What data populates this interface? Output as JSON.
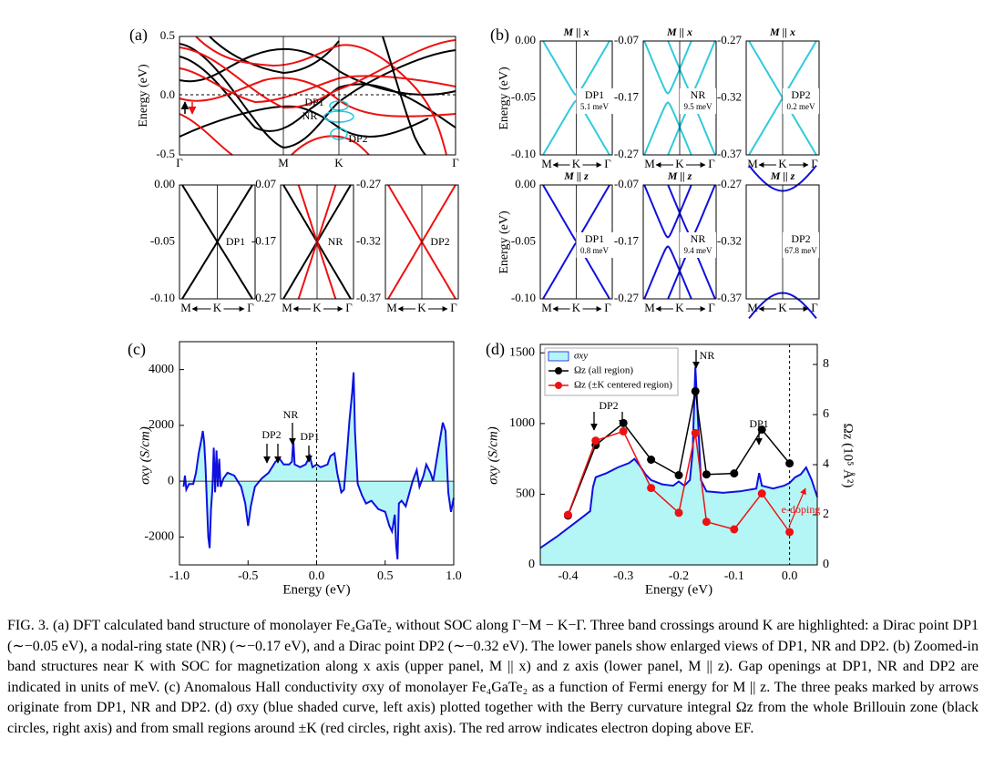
{
  "panel_a": {
    "label": "(a)",
    "ylabel": "Energy (eV)",
    "yticks": [
      "0.5",
      "0.0",
      "-0.5"
    ],
    "xticks": [
      "Γ",
      "M",
      "K",
      "Γ"
    ],
    "annotations": [
      "DP1",
      "NR",
      "DP2"
    ],
    "zooms": [
      {
        "yticks": [
          "0.00",
          "-0.05",
          "-0.10"
        ],
        "label": "DP1",
        "xticks": [
          "M",
          "K",
          "Γ"
        ]
      },
      {
        "yticks": [
          "-0.07",
          "-0.17",
          "-0.27"
        ],
        "label": "NR",
        "xticks": [
          "M",
          "K",
          "Γ"
        ]
      },
      {
        "yticks": [
          "-0.27",
          "-0.32",
          "-0.37"
        ],
        "label": "DP2",
        "xticks": [
          "M",
          "K",
          "Γ"
        ]
      }
    ]
  },
  "panel_b": {
    "label": "(b)",
    "ylabel": "Energy (eV)",
    "rows": [
      {
        "title": "M || x",
        "zooms": [
          {
            "yticks": [
              "0.00",
              "-0.05",
              "-0.10"
            ],
            "label": "DP1",
            "gap": "5.1 meV",
            "xticks": [
              "M",
              "K",
              "Γ"
            ]
          },
          {
            "yticks": [
              "-0.07",
              "-0.17",
              "-0.27"
            ],
            "label": "NR",
            "gap": "9.5 meV",
            "xticks": [
              "M",
              "K",
              "Γ"
            ]
          },
          {
            "yticks": [
              "-0.27",
              "-0.32",
              "-0.37"
            ],
            "label": "DP2",
            "gap": "0.2 meV",
            "xticks": [
              "M",
              "K",
              "Γ"
            ]
          }
        ]
      },
      {
        "title": "M || z",
        "zooms": [
          {
            "yticks": [
              "0.00",
              "-0.05",
              "-0.10"
            ],
            "label": "DP1",
            "gap": "0.8 meV",
            "xticks": [
              "M",
              "K",
              "Γ"
            ]
          },
          {
            "yticks": [
              "-0.07",
              "-0.17",
              "-0.27"
            ],
            "label": "NR",
            "gap": "9.4 meV",
            "xticks": [
              "M",
              "K",
              "Γ"
            ]
          },
          {
            "yticks": [
              "-0.27",
              "-0.32",
              "-0.37"
            ],
            "label": "DP2",
            "gap": "67.8 meV",
            "xticks": [
              "M",
              "K",
              "Γ"
            ]
          }
        ]
      }
    ]
  },
  "chart_data": [
    {
      "type": "area",
      "panel": "(c)",
      "x_label": "Energy (eV)",
      "y_label": "σxy (S/cm)",
      "color": "#1010e0",
      "fill": "#b4f6f6",
      "xlim": [
        -1,
        1
      ],
      "ylim": [
        -3000,
        5000
      ],
      "xticks": [
        {
          "value": -1,
          "label": "-1.0"
        },
        -0.5,
        {
          "value": 0,
          "label": "0.0"
        },
        0.5,
        {
          "value": 1,
          "label": "1.0"
        }
      ],
      "yticks": [
        -2000,
        0,
        2000,
        4000
      ],
      "annotations": [
        "DP2",
        "NR",
        "DP1"
      ],
      "x": [
        -0.97,
        -0.96,
        -0.95,
        -0.93,
        -0.9,
        -0.88,
        -0.86,
        -0.84,
        -0.83,
        -0.82,
        -0.81,
        -0.8,
        -0.79,
        -0.78,
        -0.77,
        -0.76,
        -0.75,
        -0.74,
        -0.73,
        -0.72,
        -0.71,
        -0.7,
        -0.68,
        -0.65,
        -0.6,
        -0.55,
        -0.52,
        -0.5,
        -0.48,
        -0.45,
        -0.4,
        -0.35,
        -0.3,
        -0.27,
        -0.24,
        -0.2,
        -0.18,
        -0.17,
        -0.16,
        -0.12,
        -0.08,
        -0.05,
        -0.03,
        0,
        0.03,
        0.08,
        0.1,
        0.13,
        0.15,
        0.18,
        0.2,
        0.22,
        0.24,
        0.26,
        0.27,
        0.28,
        0.3,
        0.33,
        0.36,
        0.4,
        0.45,
        0.5,
        0.53,
        0.55,
        0.57,
        0.58,
        0.59,
        0.6,
        0.62,
        0.65,
        0.7,
        0.73,
        0.75,
        0.78,
        0.8,
        0.83,
        0.85,
        0.9,
        0.92,
        0.94,
        0.96,
        0.98,
        1
      ],
      "values": [
        -200,
        200,
        -300,
        -100,
        -100,
        300,
        1000,
        1500,
        1800,
        1400,
        500,
        -800,
        -2000,
        -2400,
        -1000,
        -300,
        1200,
        -400,
        1100,
        -200,
        800,
        -200,
        100,
        300,
        200,
        -200,
        -800,
        -1600,
        -900,
        -200,
        100,
        300,
        700,
        800,
        600,
        600,
        700,
        1500,
        600,
        500,
        600,
        900,
        500,
        600,
        500,
        600,
        900,
        1000,
        300,
        -400,
        -300,
        900,
        2200,
        3200,
        3900,
        1800,
        -100,
        -500,
        -800,
        -700,
        -1000,
        -1100,
        -1600,
        -1800,
        -1200,
        -2300,
        -2800,
        -800,
        -700,
        -900,
        0,
        400,
        -200,
        200,
        600,
        300,
        0,
        1500,
        2100,
        1800,
        -400,
        -1100,
        -600
      ]
    },
    {
      "type": "combo",
      "panel": "(d)",
      "x_label": "Energy (eV)",
      "y_label": "σxy (S/cm)",
      "y2_label": "Ωz (10⁵ Å²)",
      "xlim": [
        -0.45,
        0.05
      ],
      "ylim": [
        0,
        1560
      ],
      "y2lim": [
        0,
        8.8
      ],
      "xticks": [
        -0.4,
        -0.3,
        -0.2,
        -0.1,
        {
          "value": 0,
          "label": "0.0"
        }
      ],
      "yticks": [
        0,
        500,
        1000,
        1500
      ],
      "y2ticks": [
        0,
        2,
        4,
        6,
        8
      ],
      "annotations": [
        "DP2",
        "NR",
        "DP1",
        "e-doping"
      ],
      "series": [
        {
          "name": "σxy",
          "type": "area",
          "color": "#1010e0",
          "fill": "#b4f6f6",
          "x": [
            -0.45,
            -0.42,
            -0.4,
            -0.38,
            -0.36,
            -0.355,
            -0.35,
            -0.33,
            -0.31,
            -0.29,
            -0.28,
            -0.27,
            -0.26,
            -0.25,
            -0.23,
            -0.21,
            -0.2,
            -0.19,
            -0.18,
            -0.175,
            -0.17,
            -0.165,
            -0.16,
            -0.15,
            -0.12,
            -0.09,
            -0.06,
            -0.055,
            -0.05,
            -0.03,
            -0.01,
            0,
            0.01,
            0.02,
            0.03,
            0.04,
            0.05
          ],
          "values": [
            120,
            200,
            260,
            320,
            380,
            550,
            620,
            650,
            690,
            720,
            750,
            700,
            640,
            600,
            570,
            560,
            590,
            560,
            600,
            800,
            1400,
            1000,
            600,
            520,
            510,
            520,
            540,
            650,
            560,
            540,
            560,
            580,
            620,
            640,
            690,
            600,
            480
          ]
        },
        {
          "name": "Ωz (all region)",
          "type": "line",
          "axis": "y2",
          "color": "#000000",
          "x": [
            -0.4,
            -0.35,
            -0.3,
            -0.25,
            -0.2,
            -0.17,
            -0.15,
            -0.1,
            -0.05,
            0
          ],
          "values": [
            1.97,
            4.78,
            5.66,
            4.2,
            3.58,
            6.93,
            3.61,
            3.65,
            5.4,
            4.05
          ]
        },
        {
          "name": "Ωz (±K centered region)",
          "type": "line",
          "axis": "y2",
          "color": "#ee1111",
          "x": [
            -0.4,
            -0.35,
            -0.3,
            -0.25,
            -0.2,
            -0.17,
            -0.15,
            -0.1,
            -0.05,
            0
          ],
          "values": [
            2.0,
            4.96,
            5.33,
            3.07,
            2.08,
            5.26,
            1.72,
            1.42,
            2.85,
            1.31
          ]
        }
      ]
    }
  ],
  "caption": "FIG. 3. (a) DFT calculated band structure of monolayer Fe₄GaTe₂ without SOC along Γ−M − K−Γ. Three band crossings around K are highlighted: a Dirac point DP1 (∼−0.05 eV), a nodal-ring state (NR) (∼−0.17 eV), and a Dirac point DP2 (∼−0.32 eV). The lower panels show enlarged views of DP1, NR and DP2. (b) Zoomed-in band structures near K with SOC for magnetization along x axis (upper panel, M || x) and z axis (lower panel, M || z). Gap openings at DP1, NR and DP2 are indicated in units of meV. (c) Anomalous Hall conductivity σxy of monolayer Fe₄GaTe₂ as a function of Fermi energy for M || z. The three peaks marked by arrows originate from DP1, NR and DP2. (d) σxy (blue shaded curve, left axis) plotted together with the Berry curvature integral Ωz from the whole Brillouin zone (black circles, right axis) and from small regions around ±K (red circles, right axis). The red arrow indicates electron doping above EF."
}
